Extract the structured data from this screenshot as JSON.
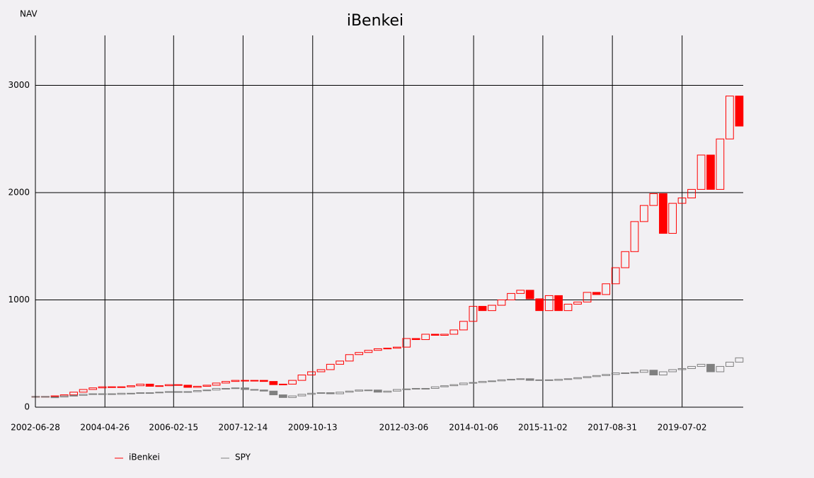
{
  "chart_data": {
    "type": "candlestick",
    "title": "iBenkei",
    "y_label": "NAV",
    "x": [
      "2002-07",
      "2002-10",
      "2003-01",
      "2003-04",
      "2003-07",
      "2003-10",
      "2004-01",
      "2004-04",
      "2004-07",
      "2004-10",
      "2005-01",
      "2005-04",
      "2005-07",
      "2005-10",
      "2006-01",
      "2006-04",
      "2006-07",
      "2006-10",
      "2007-01",
      "2007-04",
      "2007-07",
      "2007-10",
      "2008-01",
      "2008-04",
      "2008-07",
      "2008-10",
      "2009-01",
      "2009-04",
      "2009-07",
      "2009-10",
      "2010-01",
      "2010-04",
      "2010-07",
      "2010-10",
      "2011-01",
      "2011-04",
      "2011-07",
      "2011-10",
      "2012-01",
      "2012-04",
      "2012-07",
      "2012-10",
      "2013-01",
      "2013-04",
      "2013-07",
      "2013-10",
      "2014-01",
      "2014-04",
      "2014-07",
      "2014-10",
      "2015-01",
      "2015-04",
      "2015-07",
      "2015-10",
      "2016-01",
      "2016-04",
      "2016-07",
      "2016-10",
      "2017-01",
      "2017-04",
      "2017-07",
      "2017-10",
      "2018-01",
      "2018-04",
      "2018-07",
      "2018-10",
      "2019-01",
      "2019-04",
      "2019-07",
      "2019-10",
      "2020-01",
      "2020-04",
      "2020-07",
      "2020-10",
      "2021-01"
    ],
    "series": [
      {
        "name": "iBenkei",
        "color": "#ff0000",
        "values": [
          100,
          100,
          105,
          115,
          140,
          165,
          180,
          190,
          185,
          190,
          200,
          215,
          195,
          200,
          210,
          205,
          185,
          195,
          205,
          225,
          240,
          250,
          245,
          250,
          240,
          210,
          215,
          250,
          300,
          330,
          350,
          400,
          430,
          490,
          510,
          530,
          545,
          550,
          560,
          640,
          630,
          680,
          670,
          680,
          720,
          800,
          940,
          900,
          950,
          1000,
          1060,
          1090,
          1010,
          900,
          1040,
          900,
          960,
          980,
          1070,
          1050,
          1150,
          1300,
          1450,
          1730,
          1880,
          1990,
          1620,
          1900,
          1950,
          2030,
          2350,
          2030,
          2500,
          2900,
          2620
        ]
      },
      {
        "name": "SPY",
        "color": "#808080",
        "values": [
          100,
          95,
          95,
          105,
          110,
          120,
          125,
          125,
          120,
          130,
          130,
          135,
          135,
          140,
          145,
          145,
          145,
          155,
          160,
          175,
          175,
          180,
          165,
          160,
          150,
          115,
          90,
          105,
          120,
          130,
          135,
          125,
          140,
          150,
          160,
          160,
          140,
          150,
          165,
          170,
          175,
          175,
          190,
          200,
          210,
          225,
          230,
          240,
          245,
          255,
          260,
          265,
          250,
          255,
          250,
          260,
          265,
          275,
          285,
          295,
          305,
          320,
          320,
          325,
          345,
          300,
          330,
          350,
          360,
          380,
          400,
          330,
          380,
          420,
          460
        ]
      }
    ],
    "xlim": [
      "2002-06-28",
      "2021-02-08"
    ],
    "xticks": [
      "2002-06-28",
      "2004-04-26",
      "2006-02-15",
      "2007-12-14",
      "2009-10-13",
      "2012-03-06",
      "2014-01-06",
      "2015-11-02",
      "2017-08-31",
      "2019-07-02"
    ],
    "ylim": [
      0,
      3465
    ],
    "yticks": [
      0,
      1000,
      2000,
      3000
    ],
    "grid": true
  }
}
